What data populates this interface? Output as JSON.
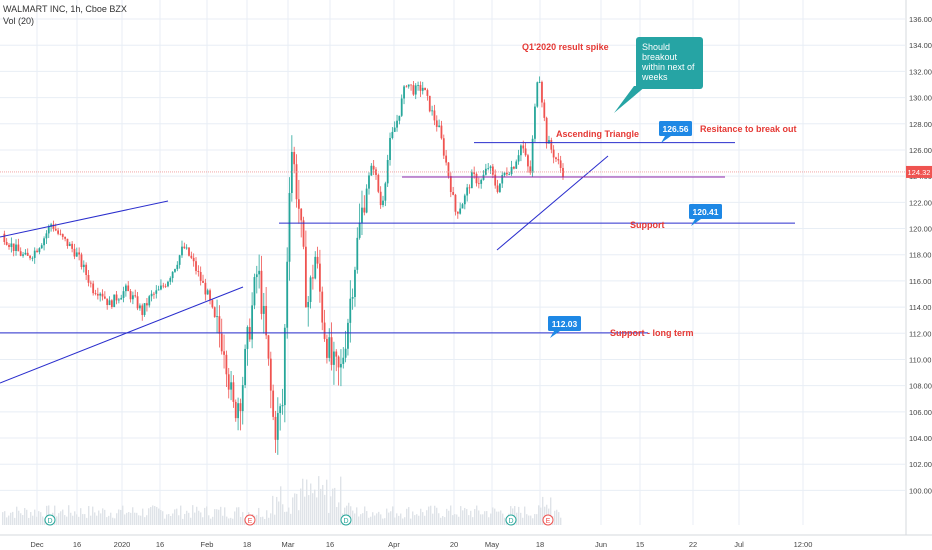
{
  "header": {
    "symbol_line": "WALMART INC, 1h, Cboe BZX",
    "indicator_line": "Vol (20)"
  },
  "colors": {
    "up": "#26a69a",
    "down": "#ef5350",
    "trendline": "#2a2ecd",
    "annotation": "#e53935",
    "label_bg": "#1e88e5",
    "price_tag": "#ef5350",
    "callout_bg": "#26a4a4",
    "grid": "#e8eef5"
  },
  "chart_data": {
    "type": "candlestick",
    "y_range": [
      99,
      137
    ],
    "y_ticks": [
      "136.00",
      "134.00",
      "132.00",
      "130.00",
      "128.00",
      "126.00",
      "124.00",
      "122.00",
      "120.00",
      "118.00",
      "116.00",
      "114.00",
      "112.00",
      "110.00",
      "108.00",
      "106.00",
      "104.00",
      "102.00",
      "100.00"
    ],
    "x_ticks": [
      "Dec",
      "16",
      "2020",
      "16",
      "Feb",
      "18",
      "Mar",
      "16",
      "Apr",
      "20",
      "May",
      "18",
      "Jun",
      "15",
      "22",
      "Jul",
      "12:00"
    ],
    "current_price": "124.32",
    "price_path": [
      {
        "t": 0,
        "p": 119.6
      },
      {
        "t": 0.5,
        "p": 118.8
      },
      {
        "t": 1,
        "p": 118.2
      },
      {
        "t": 1.5,
        "p": 117.7
      },
      {
        "t": 2,
        "p": 118.3
      },
      {
        "t": 2.5,
        "p": 119.2
      },
      {
        "t": 3,
        "p": 120.4
      },
      {
        "t": 3.5,
        "p": 119.4
      },
      {
        "t": 4,
        "p": 118.8
      },
      {
        "t": 4.5,
        "p": 118.1
      },
      {
        "t": 5,
        "p": 116.8
      },
      {
        "t": 5.5,
        "p": 115.4
      },
      {
        "t": 6,
        "p": 115.2
      },
      {
        "t": 6.5,
        "p": 114.2
      },
      {
        "t": 7,
        "p": 114.8
      },
      {
        "t": 7.5,
        "p": 115.3
      },
      {
        "t": 8,
        "p": 114.6
      },
      {
        "t": 8.5,
        "p": 113.6
      },
      {
        "t": 9,
        "p": 114.8
      },
      {
        "t": 9.5,
        "p": 115.2
      },
      {
        "t": 10,
        "p": 116.0
      },
      {
        "t": 10.5,
        "p": 117.2
      },
      {
        "t": 11,
        "p": 118.6
      },
      {
        "t": 11.5,
        "p": 117.6
      },
      {
        "t": 12,
        "p": 116.2
      },
      {
        "t": 12.5,
        "p": 114.8
      },
      {
        "t": 13,
        "p": 112.5
      },
      {
        "t": 13.5,
        "p": 111.2
      },
      {
        "t": 14,
        "p": 106.0
      },
      {
        "t": 14.5,
        "p": 107.5
      },
      {
        "t": 15,
        "p": 112.5
      },
      {
        "t": 15.5,
        "p": 117.0
      },
      {
        "t": 16,
        "p": 111.5
      },
      {
        "t": 16.5,
        "p": 104.5
      },
      {
        "t": 17,
        "p": 106.5
      },
      {
        "t": 17.5,
        "p": 126.8
      },
      {
        "t": 18,
        "p": 121.5
      },
      {
        "t": 18.5,
        "p": 114.0
      },
      {
        "t": 19,
        "p": 118.0
      },
      {
        "t": 19.5,
        "p": 112.5
      },
      {
        "t": 20,
        "p": 109.5
      },
      {
        "t": 20.5,
        "p": 108.8
      },
      {
        "t": 21,
        "p": 113.5
      },
      {
        "t": 21.5,
        "p": 118.6
      },
      {
        "t": 22,
        "p": 122.8
      },
      {
        "t": 22.5,
        "p": 125.0
      },
      {
        "t": 23,
        "p": 121.5
      },
      {
        "t": 23.5,
        "p": 126.5
      },
      {
        "t": 24,
        "p": 128.5
      },
      {
        "t": 24.5,
        "p": 131.2
      },
      {
        "t": 25,
        "p": 130.5
      },
      {
        "t": 25.5,
        "p": 130.8
      },
      {
        "t": 26,
        "p": 129.0
      },
      {
        "t": 26.5,
        "p": 127.5
      },
      {
        "t": 27,
        "p": 124.5
      },
      {
        "t": 27.5,
        "p": 121.2
      },
      {
        "t": 28,
        "p": 122.2
      },
      {
        "t": 28.5,
        "p": 124.0
      },
      {
        "t": 29,
        "p": 123.5
      },
      {
        "t": 29.5,
        "p": 124.8
      },
      {
        "t": 30,
        "p": 123.0
      },
      {
        "t": 30.5,
        "p": 124.3
      },
      {
        "t": 31,
        "p": 124.8
      },
      {
        "t": 31.5,
        "p": 126.5
      },
      {
        "t": 32,
        "p": 124.0
      },
      {
        "t": 32.5,
        "p": 132.5
      },
      {
        "t": 33,
        "p": 126.8
      },
      {
        "t": 33.5,
        "p": 125.5
      },
      {
        "t": 34,
        "p": 124.3
      }
    ],
    "lines": [
      {
        "name": "resistance",
        "value": 126.56,
        "label": "126.56",
        "text": "Resitance to break out"
      },
      {
        "name": "support",
        "value": 120.41,
        "label": "120.41",
        "text": "Support"
      },
      {
        "name": "support-long-term",
        "value": 112.03,
        "label": "112.03",
        "text": "Support - long term"
      }
    ],
    "annotations": {
      "spike": "Q1'2020 result spike",
      "triangle": "Ascending Triangle",
      "callout": [
        "Should",
        "breakout",
        "within next of",
        "weeks"
      ]
    },
    "event_markers": [
      "D",
      "E",
      "D",
      "D",
      "E"
    ]
  }
}
